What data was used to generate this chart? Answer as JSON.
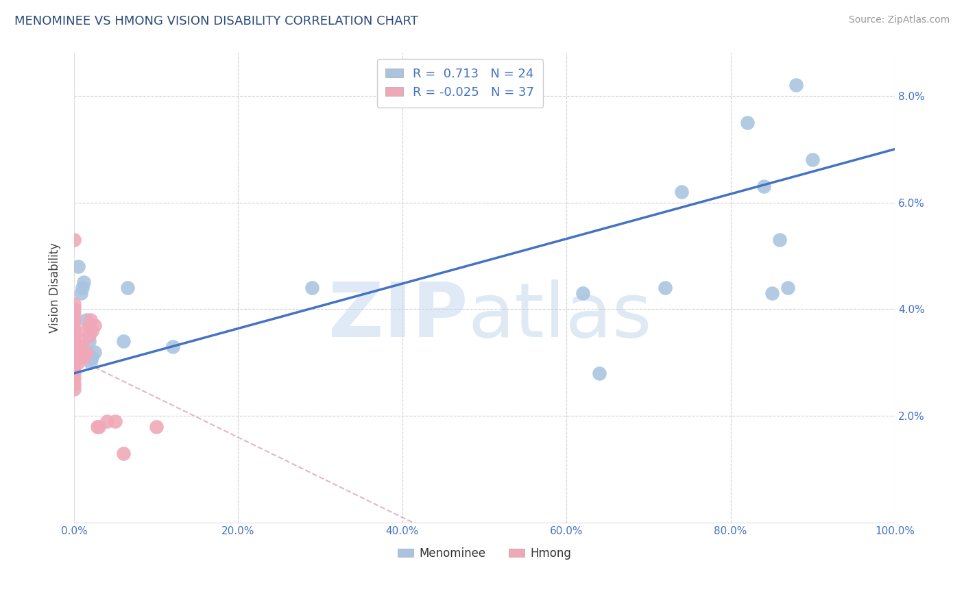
{
  "title": "MENOMINEE VS HMONG VISION DISABILITY CORRELATION CHART",
  "source": "Source: ZipAtlas.com",
  "ylabel": "Vision Disability",
  "xlim": [
    0,
    1.0
  ],
  "ylim": [
    0,
    0.088
  ],
  "yticks": [
    0.02,
    0.04,
    0.06,
    0.08
  ],
  "ytick_labels": [
    "2.0%",
    "4.0%",
    "6.0%",
    "8.0%"
  ],
  "xticks": [
    0.0,
    0.2,
    0.4,
    0.6,
    0.8,
    1.0
  ],
  "xtick_labels": [
    "0.0%",
    "20.0%",
    "40.0%",
    "60.0%",
    "80.0%",
    "100.0%"
  ],
  "menominee_R": 0.713,
  "menominee_N": 24,
  "hmong_R": -0.025,
  "hmong_N": 37,
  "menominee_color": "#a8c4e0",
  "hmong_color": "#f0a8b8",
  "menominee_line_color": "#4472c4",
  "hmong_line_color": "#d8a0b0",
  "title_color": "#2c4a7a",
  "axis_tick_color": "#4472c4",
  "grid_color": "#cccccc",
  "menominee_x": [
    0.005,
    0.008,
    0.01,
    0.012,
    0.015,
    0.018,
    0.02,
    0.022,
    0.025,
    0.06,
    0.065,
    0.12,
    0.29,
    0.62,
    0.64,
    0.72,
    0.74,
    0.82,
    0.84,
    0.85,
    0.86,
    0.87,
    0.88,
    0.9
  ],
  "menominee_y": [
    0.048,
    0.043,
    0.044,
    0.045,
    0.038,
    0.034,
    0.03,
    0.031,
    0.032,
    0.034,
    0.044,
    0.033,
    0.044,
    0.043,
    0.028,
    0.044,
    0.062,
    0.075,
    0.063,
    0.043,
    0.053,
    0.044,
    0.082,
    0.068
  ],
  "hmong_x": [
    0.0,
    0.0,
    0.0,
    0.0,
    0.0,
    0.0,
    0.0,
    0.0,
    0.0,
    0.0,
    0.0,
    0.0,
    0.0,
    0.0,
    0.0,
    0.0,
    0.0,
    0.0,
    0.005,
    0.005,
    0.008,
    0.008,
    0.01,
    0.012,
    0.015,
    0.015,
    0.018,
    0.018,
    0.02,
    0.022,
    0.025,
    0.028,
    0.03,
    0.04,
    0.05,
    0.06,
    0.1
  ],
  "hmong_y": [
    0.028,
    0.029,
    0.03,
    0.031,
    0.032,
    0.033,
    0.034,
    0.035,
    0.036,
    0.037,
    0.038,
    0.039,
    0.04,
    0.041,
    0.025,
    0.026,
    0.027,
    0.053,
    0.03,
    0.031,
    0.032,
    0.033,
    0.034,
    0.031,
    0.032,
    0.036,
    0.037,
    0.035,
    0.038,
    0.036,
    0.037,
    0.018,
    0.018,
    0.019,
    0.019,
    0.013,
    0.018
  ]
}
